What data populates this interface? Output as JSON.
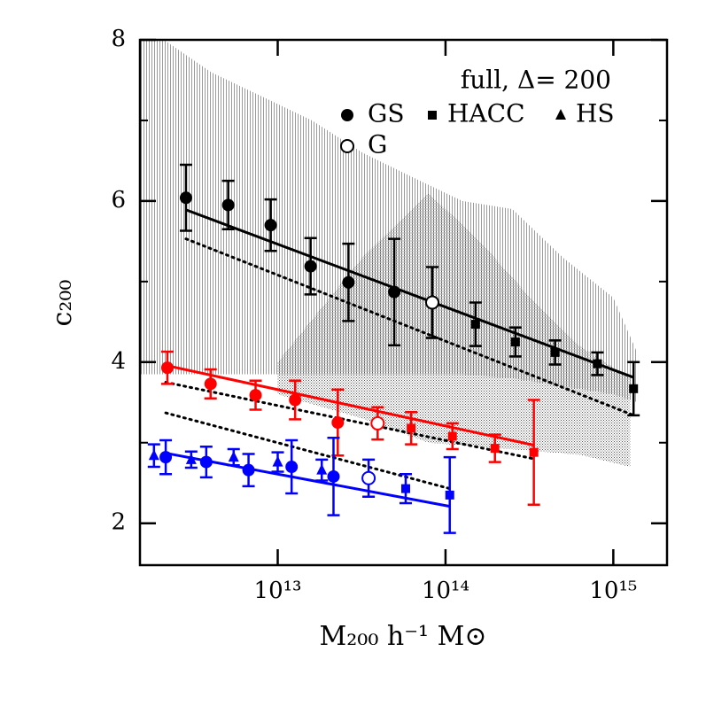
{
  "chart_data": {
    "type": "scatter",
    "xlabel": "M₂₀₀ h⁻¹ M⊙",
    "ylabel": "c₂₀₀",
    "annotation": "full, Δ= 200",
    "legend": [
      {
        "name": "GS",
        "marker": "circle"
      },
      {
        "name": "HACC",
        "marker": "square"
      },
      {
        "name": "HS",
        "marker": "triangle"
      },
      {
        "name": "G",
        "marker": "open-circle"
      }
    ],
    "log_x": true,
    "xlim": [
      1510000000000.0,
      2090000000000000.0
    ],
    "ylim": [
      1.48,
      8
    ],
    "xticks": [
      {
        "value": 10000000000000.0,
        "label": "10¹³"
      },
      {
        "value": 100000000000000.0,
        "label": "10¹⁴"
      },
      {
        "value": 1000000000000000.0,
        "label": "10¹⁵"
      }
    ],
    "yticks": [
      2,
      4,
      6,
      8
    ],
    "yminorticks": [
      3,
      5,
      7
    ],
    "bands": [
      {
        "color": "#9a9a9a",
        "x": [
          1510000000000.0,
          2100000000000.0,
          4000000000000.0,
          8000000000000.0,
          16000000000000.0,
          32000000000000.0,
          63000000000000.0,
          126000000000000.0,
          250000000000000.0,
          500000000000000.0,
          1000000000000000.0,
          1400000000000000.0
        ],
        "upper": [
          8,
          8,
          7.6,
          7.3,
          7.0,
          6.6,
          6.3,
          6.0,
          5.9,
          5.3,
          4.8,
          4.1
        ],
        "lower": [
          3.85,
          3.85,
          3.85,
          3.85,
          3.85,
          3.85,
          3.85,
          3.85,
          3.8,
          3.7,
          3.6,
          3.5
        ]
      },
      {
        "color": "#6a6a6a",
        "x": [
          10000000000000.0,
          32000000000000.0,
          79000000000000.0,
          160000000000000.0,
          320000000000000.0,
          630000000000000.0,
          1260000000000000.0
        ],
        "upper": [
          4.0,
          5.3,
          6.1,
          5.5,
          4.8,
          4.2,
          3.8
        ],
        "lower": [
          3.6,
          3.3,
          3.0,
          2.95,
          2.9,
          2.85,
          2.7
        ]
      }
    ],
    "fits": [
      {
        "color": "#000000",
        "style": "solid",
        "x": [
          2840000000000.0,
          1320000000000000.0
        ],
        "values": [
          5.89,
          3.81
        ]
      },
      {
        "color": "#ff0000",
        "style": "solid",
        "x": [
          2150000000000.0,
          336000000000000.0
        ],
        "values": [
          3.96,
          2.97
        ]
      },
      {
        "color": "#0000ff",
        "style": "solid",
        "x": [
          2150000000000.0,
          106000000000000.0
        ],
        "values": [
          2.87,
          2.21
        ]
      },
      {
        "color": "#000000",
        "style": "dotted",
        "x": [
          2840000000000.0,
          1320000000000000.0
        ],
        "values": [
          5.53,
          3.34
        ]
      },
      {
        "color": "#000000",
        "style": "dotted",
        "x": [
          2150000000000.0,
          336000000000000.0
        ],
        "values": [
          3.75,
          2.8
        ]
      },
      {
        "color": "#000000",
        "style": "dotted",
        "x": [
          2150000000000.0,
          106000000000000.0
        ],
        "values": [
          3.37,
          2.43
        ]
      }
    ],
    "series": [
      {
        "color": "#000000",
        "marker": "circle",
        "x": [
          2840000000000.0,
          5070000000000.0,
          9080000000000.0,
          15700000000000.0,
          26400000000000.0,
          49500000000000.0
        ],
        "values": [
          6.04,
          5.95,
          5.7,
          5.19,
          4.99,
          4.87
        ],
        "errors": [
          0.41,
          0.3,
          0.32,
          0.35,
          0.48,
          0.66
        ]
      },
      {
        "color": "#000000",
        "marker": "open-circle",
        "x": [
          83400000000000.0
        ],
        "values": [
          4.74
        ],
        "errors": [
          0.44
        ]
      },
      {
        "color": "#000000",
        "marker": "square",
        "x": [
          151000000000000.0,
          261000000000000.0,
          450000000000000.0,
          804000000000000.0,
          1320000000000000.0
        ],
        "values": [
          4.47,
          4.25,
          4.12,
          3.98,
          3.67
        ],
        "errors": [
          0.27,
          0.18,
          0.15,
          0.14,
          0.33
        ]
      },
      {
        "color": "#ff0000",
        "marker": "circle",
        "x": [
          2200000000000.0,
          3980000000000.0,
          7380000000000.0,
          12700000000000.0,
          22800000000000.0
        ],
        "values": [
          3.93,
          3.73,
          3.59,
          3.53,
          3.25
        ],
        "errors": [
          0.2,
          0.18,
          0.18,
          0.24,
          0.41
        ]
      },
      {
        "color": "#ff0000",
        "marker": "open-circle",
        "x": [
          39400000000000.0
        ],
        "values": [
          3.24
        ],
        "errors": [
          0.2
        ]
      },
      {
        "color": "#ff0000",
        "marker": "square",
        "x": [
          62400000000000.0,
          110000000000000.0,
          197000000000000.0,
          336000000000000.0
        ],
        "values": [
          3.18,
          3.08,
          2.93,
          2.88
        ],
        "errors": [
          0.2,
          0.16,
          0.17,
          0.65
        ]
      },
      {
        "color": "#0000ff",
        "marker": "triangle",
        "x": [
          1830000000000.0,
          3050000000000.0,
          5460000000000.0,
          10000000000000.0,
          18300000000000.0
        ],
        "values": [
          2.84,
          2.79,
          2.82,
          2.76,
          2.66
        ],
        "errors": [
          0.14,
          0.1,
          0.1,
          0.12,
          0.13
        ]
      },
      {
        "color": "#0000ff",
        "marker": "circle",
        "x": [
          2150000000000.0,
          3750000000000.0,
          6700000000000.0,
          12100000000000.0,
          21500000000000.0
        ],
        "values": [
          2.82,
          2.76,
          2.66,
          2.7,
          2.58
        ],
        "errors": [
          0.21,
          0.19,
          0.2,
          0.33,
          0.48
        ]
      },
      {
        "color": "#0000ff",
        "marker": "open-circle",
        "x": [
          34800000000000.0
        ],
        "values": [
          2.56
        ],
        "errors": [
          0.23
        ]
      },
      {
        "color": "#0000ff",
        "marker": "square",
        "x": [
          57900000000000.0,
          106000000000000.0
        ],
        "values": [
          2.43,
          2.35
        ],
        "errors": [
          0.18,
          0.47
        ]
      }
    ]
  }
}
